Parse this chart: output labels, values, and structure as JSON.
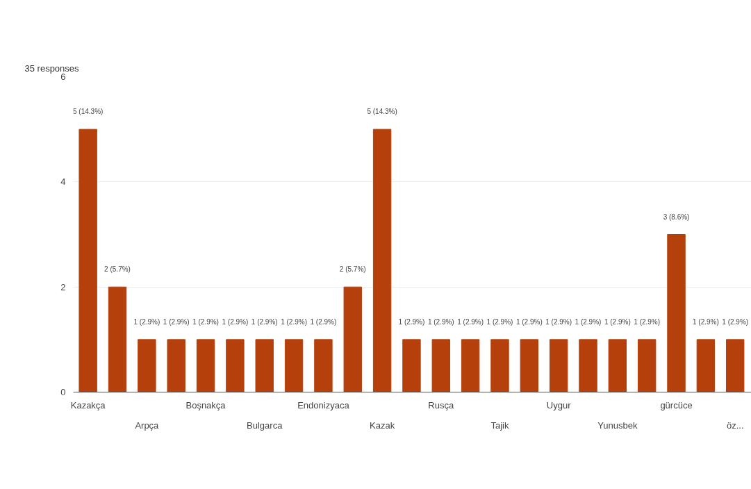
{
  "chart_data": {
    "type": "bar",
    "title": "35 responses",
    "categories": [
      "Kazakça",
      null,
      "Arpça",
      null,
      "Boşnakça",
      null,
      "Bulgarca",
      null,
      "Endonizyaca",
      null,
      "Kazak",
      null,
      "Rusça",
      null,
      "Tajik",
      null,
      "Uygur",
      null,
      "Yunusbek",
      null,
      "gürcüce",
      null,
      "öz..."
    ],
    "values": [
      5,
      2,
      1,
      1,
      1,
      1,
      1,
      1,
      1,
      2,
      5,
      1,
      1,
      1,
      1,
      1,
      1,
      1,
      1,
      1,
      3,
      1,
      1
    ],
    "value_labels": [
      "5 (14.3%)",
      "2 (5.7%)",
      "1 (2.9%)",
      "1 (2.9%)",
      "1 (2.9%)",
      "1 (2.9%)",
      "1 (2.9%)",
      "1 (2.9%)",
      "1 (2.9%)",
      "2 (5.7%)",
      "5 (14.3%)",
      "1 (2.9%)",
      "1 (2.9%)",
      "1 (2.9%)",
      "1 (2.9%)",
      "1 (2.9%)",
      "1 (2.9%)",
      "1 (2.9%)",
      "1 (2.9%)",
      "1 (2.9%)",
      "3 (8.6%)",
      "1 (2.9%)",
      "1 (2.9%)"
    ],
    "color": "#b5400b",
    "ylim": [
      0,
      6
    ],
    "yticks": [
      0,
      2,
      4,
      6
    ],
    "grid": "y"
  }
}
